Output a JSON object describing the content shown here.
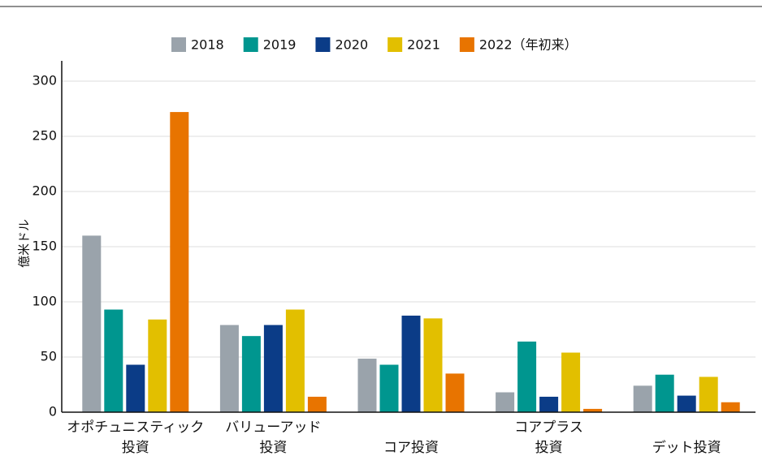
{
  "chart_data": {
    "type": "bar",
    "y_label": "億米ドル",
    "categories": [
      [
        "オポチュニスティック",
        "投資"
      ],
      [
        "バリューアッド",
        "投資"
      ],
      [
        "コア投資"
      ],
      [
        "コアプラス",
        "投資"
      ],
      [
        "デット投資"
      ]
    ],
    "series": [
      {
        "name": "2018",
        "color": "#9aa3ab",
        "values": [
          160,
          79,
          48.5,
          18,
          24
        ]
      },
      {
        "name": "2019",
        "color": "#00968f",
        "values": [
          93,
          69,
          43,
          64,
          34
        ]
      },
      {
        "name": "2020",
        "color": "#0b3c87",
        "values": [
          43,
          79,
          87.5,
          14,
          15
        ]
      },
      {
        "name": "2021",
        "color": "#e2bf00",
        "values": [
          84,
          93,
          85,
          54,
          32
        ]
      },
      {
        "name": "2022（年初来）",
        "color": "#e87400",
        "values": [
          272,
          14,
          35,
          3,
          9
        ]
      }
    ],
    "ylim": [
      0,
      300
    ],
    "yticks": [
      0,
      50,
      100,
      150,
      200,
      250,
      300
    ],
    "grid": true,
    "legend": "top"
  }
}
